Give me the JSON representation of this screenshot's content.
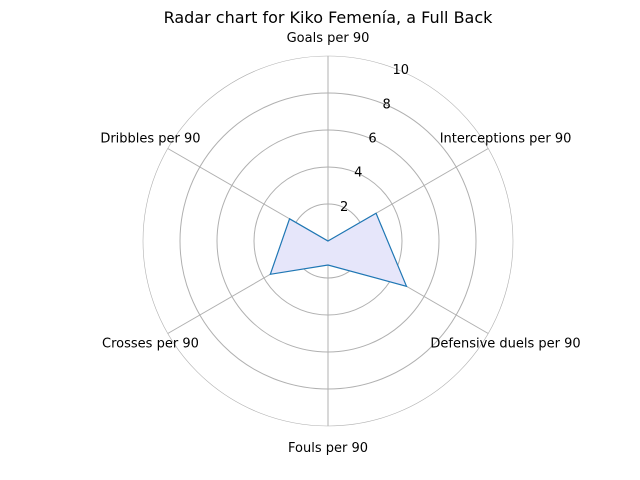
{
  "chart_data": {
    "type": "radar",
    "title": "Radar chart for Kiko Femenía, a Full Back",
    "categories": [
      "Goals per 90",
      "Interceptions per 90",
      "Defensive duels per 90",
      "Fouls per 90",
      "Crosses per 90",
      "Dribbles per 90"
    ],
    "series": [
      {
        "values": [
          0.0,
          3.0,
          4.9,
          1.3,
          3.6,
          2.4
        ]
      }
    ],
    "rlim": [
      0,
      10
    ],
    "ticks": [
      2,
      4,
      6,
      8,
      10
    ],
    "grid": true,
    "colors": {
      "line": "#1f77b4",
      "fill": "#e6e6fa",
      "grid": "#b0b0b0"
    }
  }
}
